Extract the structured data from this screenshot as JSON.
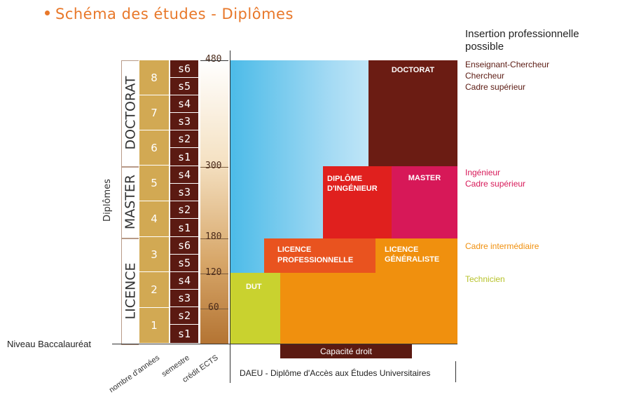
{
  "title": "Schéma des études - Diplômes",
  "left_label": "Diplômes",
  "groups": {
    "doctorat": "DOCTORAT",
    "master": "MASTER",
    "licence": "LICENCE"
  },
  "years": [
    "8",
    "7",
    "6",
    "5",
    "4",
    "3",
    "2",
    "1"
  ],
  "semesters": [
    "s6",
    "s5",
    "s4",
    "s3",
    "s2",
    "s1",
    "s4",
    "s3",
    "s2",
    "s1",
    "s6",
    "s5",
    "s4",
    "s3",
    "s2",
    "s1"
  ],
  "ects": [
    "480",
    "300",
    "180",
    "120",
    "60"
  ],
  "baseline_label": "Niveau Baccalauréat",
  "axis_labels": {
    "years": "nombre d'années",
    "semester": "semestre",
    "ects": "crédit ECTS"
  },
  "diplomas": {
    "doctorat": "DOCTORAT",
    "ingenieur": "DIPLÔME D'INGÉNIEUR",
    "master": "MASTER",
    "licence_pro": "LICENCE PROFESSIONNELLE",
    "licence_gen": "LICENCE GÉNÉRALISTE",
    "dut": "DUT"
  },
  "capacite": "Capacité droit",
  "daeu": "DAEU - Diplôme d'Accès aux Études Universitaires",
  "insertion_title": "Insertion professionnelle possible",
  "insertion": {
    "doctorat": [
      "Enseignant-Chercheur",
      "Chercheur",
      "Cadre supérieur"
    ],
    "master": [
      "Ingénieur",
      "Cadre supérieur"
    ],
    "licence": "Cadre intermédiaire",
    "dut": "Technicien"
  },
  "colors": {
    "doctorat": "#6b1c13",
    "ingenieur": "#e0201e",
    "master": "#d71858",
    "licence_pro": "#e9531f",
    "orange": "#f0900e",
    "dut": "#c9d22f",
    "capacite": "#5b1a12",
    "title": "#e8782a",
    "year": "#d2a953",
    "semester": "#5b1a12"
  }
}
